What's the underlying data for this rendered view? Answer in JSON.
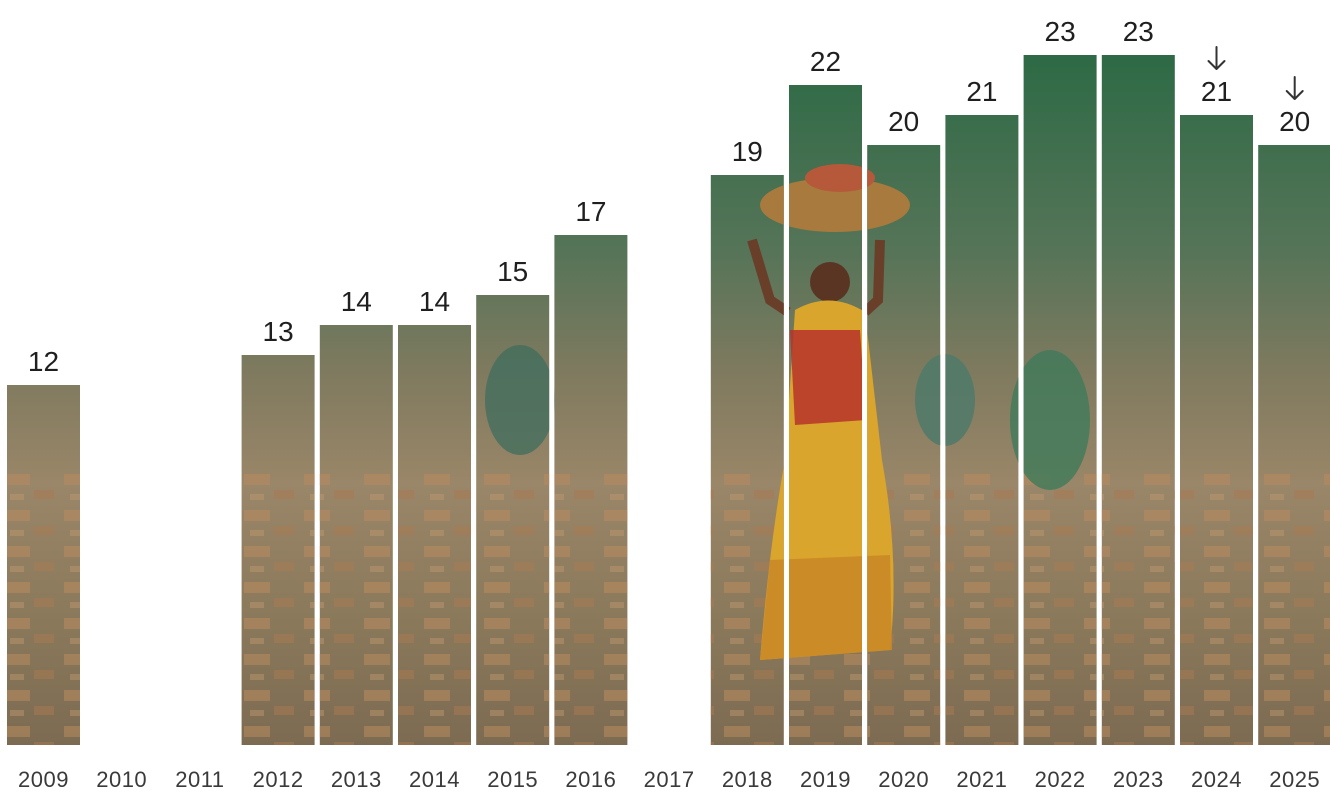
{
  "chart_data": {
    "type": "bar",
    "categories": [
      "2009",
      "2010",
      "2011",
      "2012",
      "2013",
      "2014",
      "2015",
      "2016",
      "2017",
      "2018",
      "2019",
      "2020",
      "2021",
      "2022",
      "2023",
      "2024",
      "2025"
    ],
    "values": [
      12,
      null,
      null,
      13,
      14,
      14,
      15,
      17,
      null,
      19,
      22,
      20,
      21,
      23,
      23,
      21,
      20
    ],
    "value_labels": [
      "12",
      "",
      "",
      "13",
      "14",
      "14",
      "15",
      "17",
      "",
      "19",
      "22",
      "20",
      "21",
      "23",
      "23",
      "21",
      "20"
    ],
    "down_arrow_markers": [
      "2024",
      "2025"
    ],
    "ylim": [
      0,
      23
    ],
    "grid": false,
    "legend": "none",
    "bar_fill": "photo-texture",
    "colors": {
      "ground": "#8f7c5e",
      "foliage": "#2f6244",
      "brick": "#b07a4e",
      "sari_yellow": "#d9a52c",
      "sari_red": "#b5322a",
      "text": "#1f1f1f"
    }
  }
}
